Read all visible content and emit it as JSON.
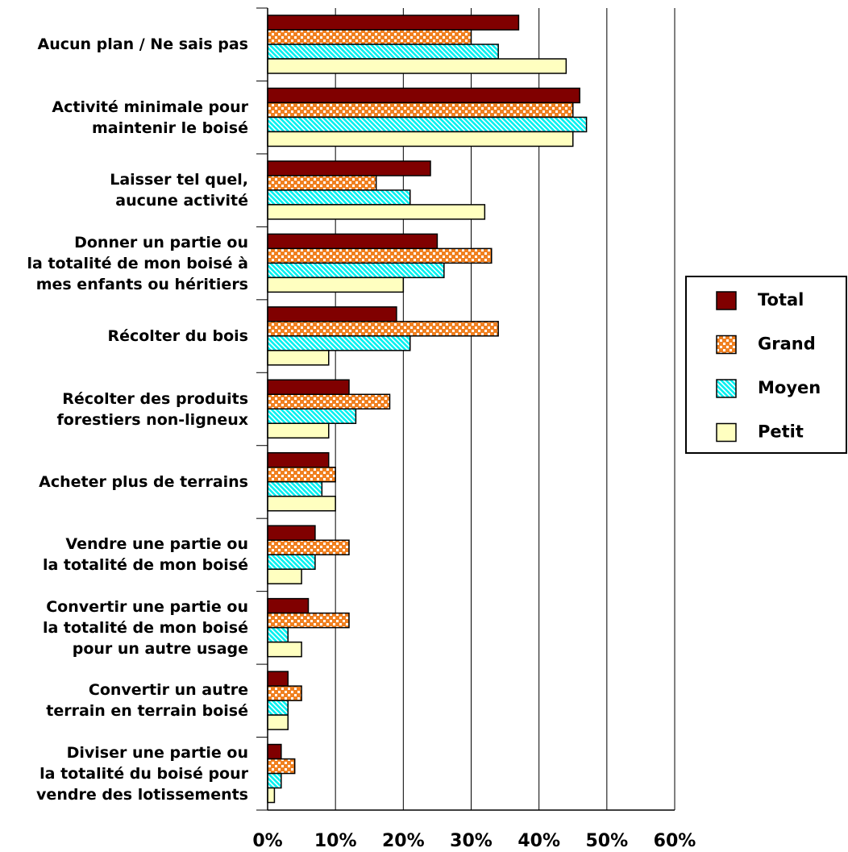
{
  "chart_data": {
    "type": "barh",
    "categories": [
      "Aucun plan / Ne sais pas",
      "Activité minimale pour\nmaintenir le boisé",
      "Laisser tel quel,\naucune activité",
      "Donner un partie ou\nla totalité de mon boisé à\nmes enfants ou héritiers",
      "Récolter du bois",
      "Récolter des produits\nforestiers non-ligneux",
      "Acheter plus de terrains",
      "Vendre une partie ou\nla totalité de mon boisé",
      "Convertir une partie ou\nla totalité de mon boisé\npour un autre usage",
      "Convertir un autre\nterrain en terrain boisé",
      "Diviser une partie ou\nla totalité du boisé pour\nvendre des lotissements"
    ],
    "series": [
      {
        "name": "Total",
        "color": "#800000",
        "pattern": "solid",
        "values": [
          37,
          46,
          24,
          25,
          19,
          12,
          9,
          7,
          6,
          3,
          2
        ]
      },
      {
        "name": "Grand",
        "color": "#f08020",
        "pattern": "checker",
        "values": [
          30,
          45,
          16,
          33,
          34,
          18,
          10,
          12,
          12,
          5,
          4
        ]
      },
      {
        "name": "Moyen",
        "color": "#00f0f0",
        "pattern": "stripes",
        "values": [
          34,
          47,
          21,
          26,
          21,
          13,
          8,
          7,
          3,
          3,
          2
        ]
      },
      {
        "name": "Petit",
        "color": "#ffffc0",
        "pattern": "solid",
        "values": [
          44,
          45,
          32,
          20,
          9,
          9,
          10,
          5,
          5,
          3,
          1
        ]
      }
    ],
    "xlim": [
      0,
      60
    ],
    "xticks": [
      {
        "value": 0,
        "label": "0%"
      },
      {
        "value": 10,
        "label": "10%"
      },
      {
        "value": 20,
        "label": "20%"
      },
      {
        "value": 30,
        "label": "30%"
      },
      {
        "value": 40,
        "label": "40%"
      },
      {
        "value": 50,
        "label": "50%"
      },
      {
        "value": 60,
        "label": "60%"
      }
    ],
    "grid": true,
    "legend": "right"
  }
}
